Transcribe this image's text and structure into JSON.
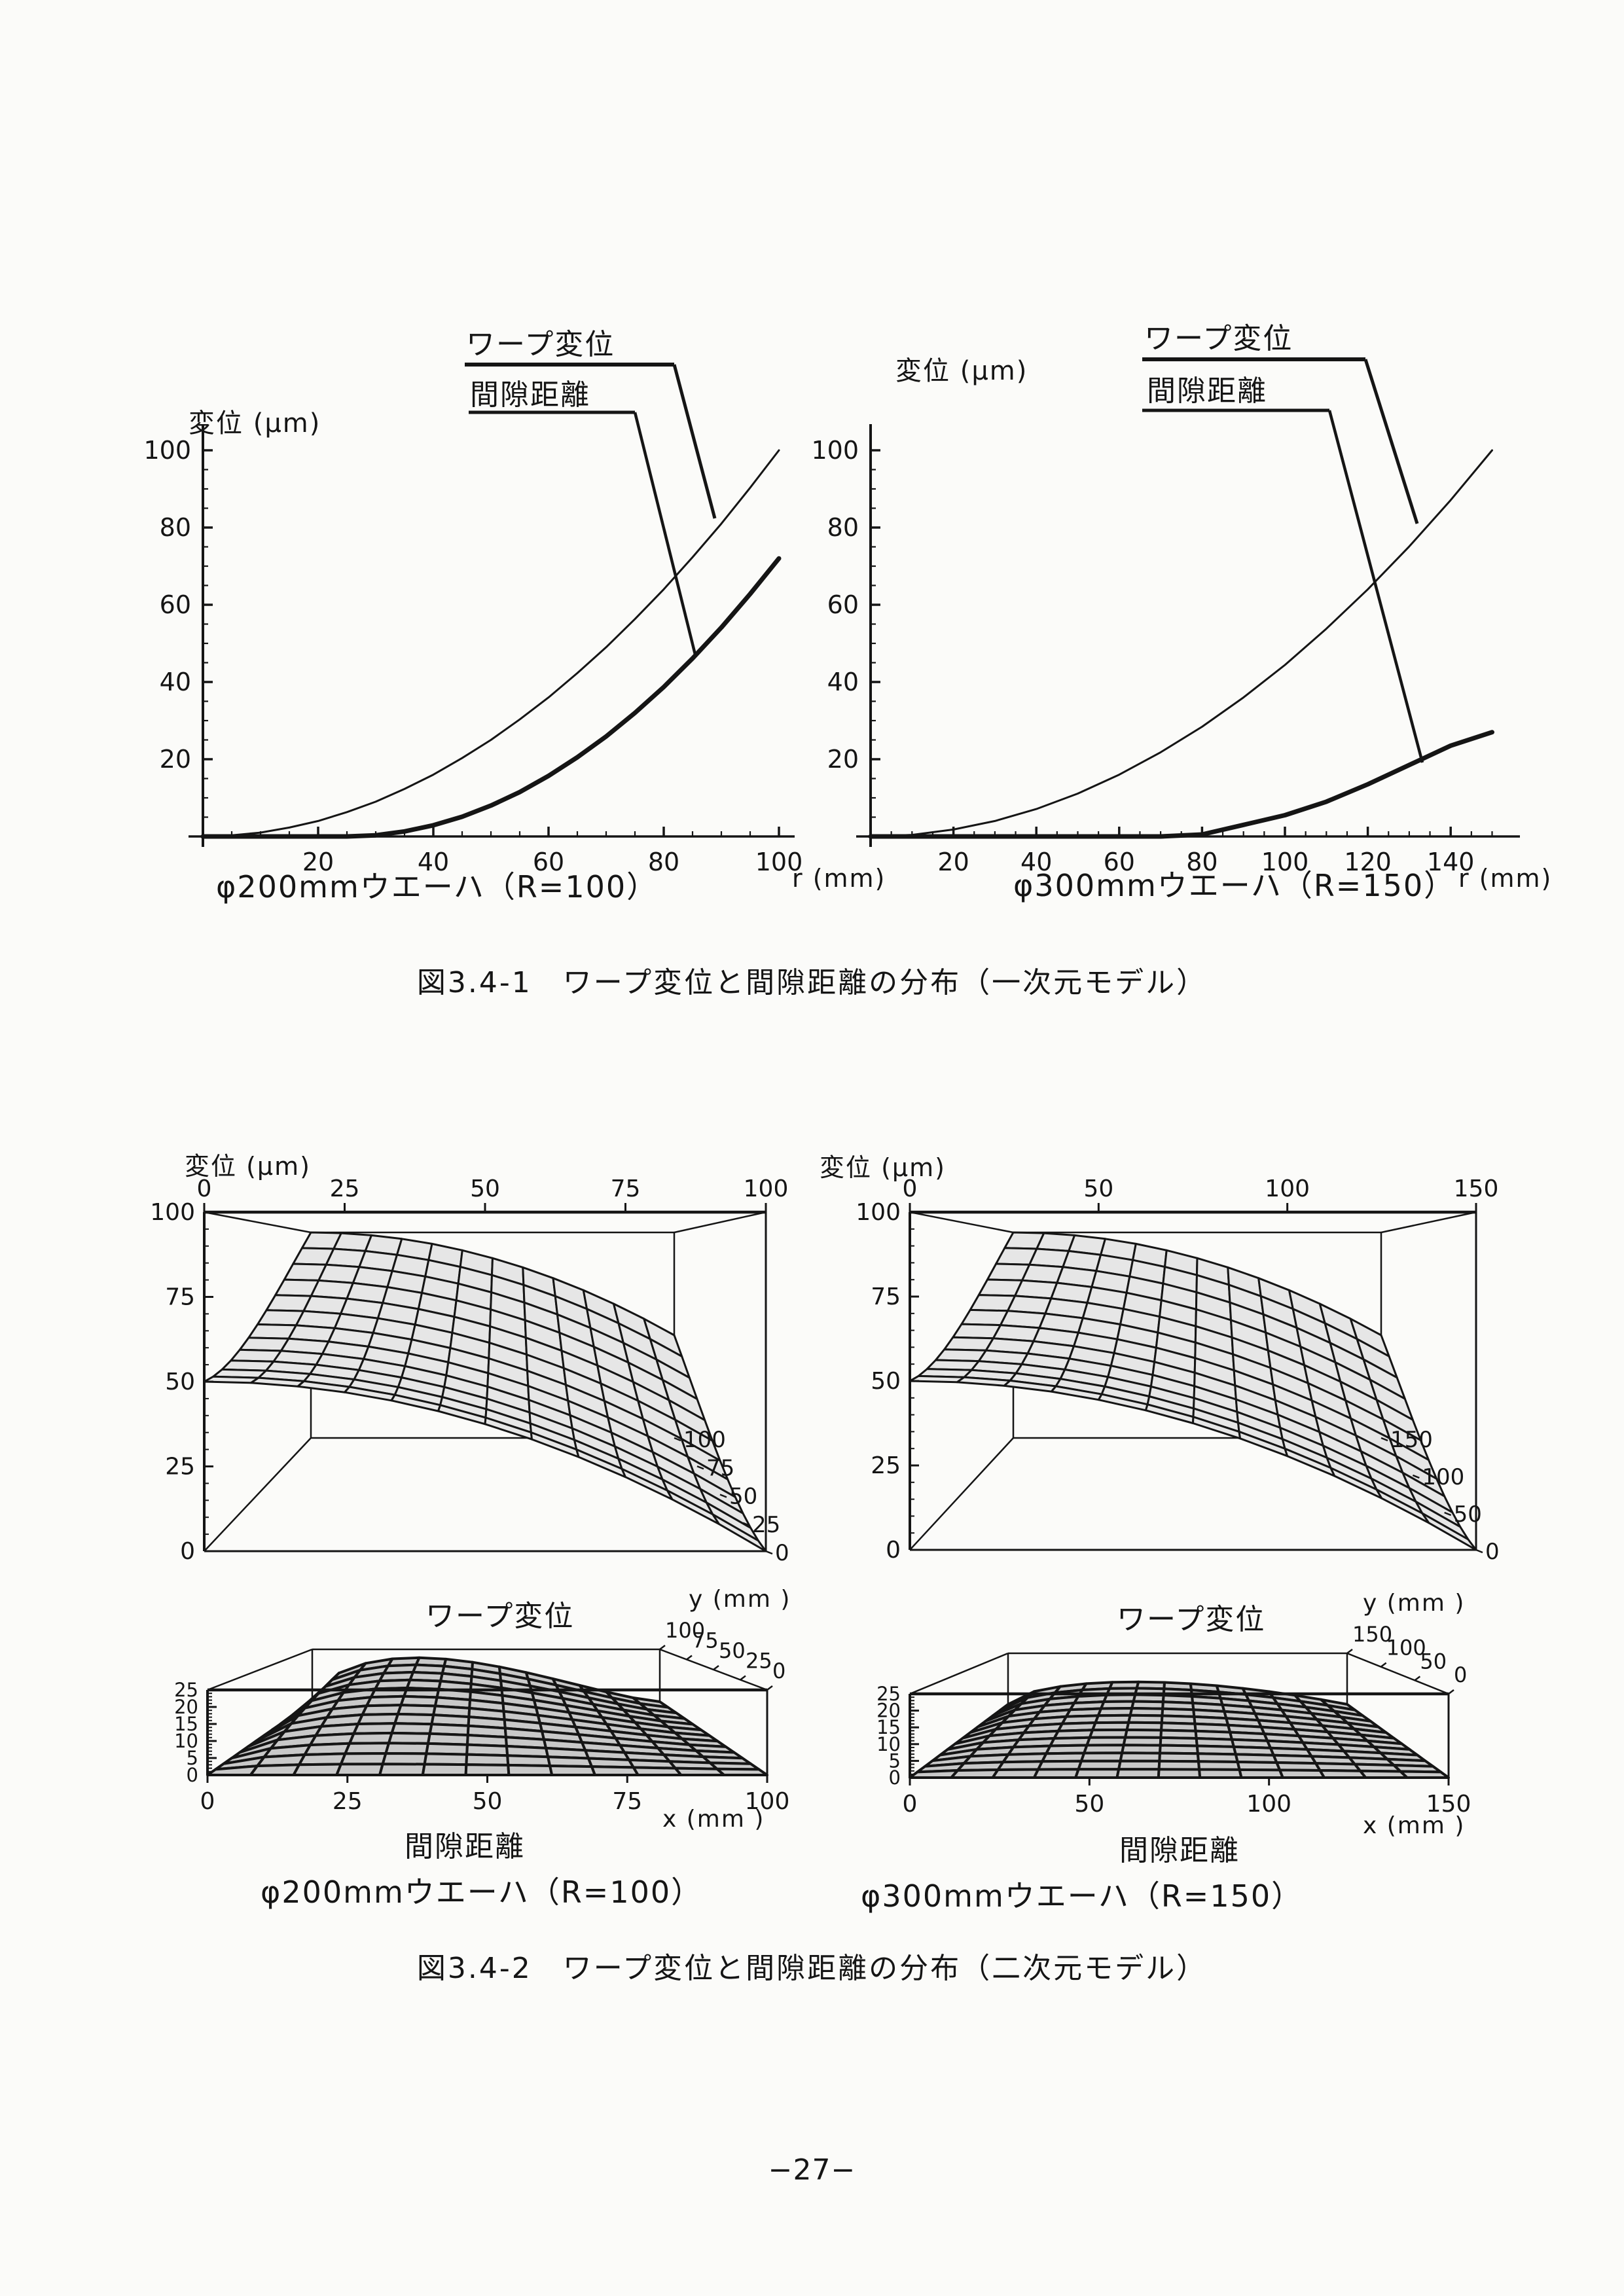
{
  "page": {
    "number": "−27−"
  },
  "figure1": {
    "caption": "図3.4-1　ワープ変位と間隙距離の分布（一次元モデル）"
  },
  "figure2": {
    "caption": "図3.4-2　ワープ変位と間隙距離の分布（二次元モデル）",
    "left_label": "φ200mmウエーハ（R=100）",
    "right_label": "φ300mmウエーハ（R=150）"
  },
  "chart_data": [
    {
      "type": "line",
      "title": "φ200mmウエーハ（R=100）",
      "xlabel": "r (mm)",
      "ylabel": "変位 (μm)",
      "xlim": [
        0,
        103
      ],
      "ylim": [
        0,
        104
      ],
      "x_ticks": [
        20,
        40,
        60,
        80,
        100
      ],
      "y_ticks": [
        20,
        40,
        60,
        80,
        100
      ],
      "minor_tick_step": 5,
      "grid": "off",
      "legend_position": "callout-top-right",
      "series": [
        {
          "name": "ワープ変位",
          "line": "thin",
          "r": [
            0,
            5,
            10,
            15,
            20,
            25,
            30,
            35,
            40,
            45,
            50,
            55,
            60,
            65,
            70,
            75,
            80,
            85,
            90,
            95,
            100
          ],
          "values": [
            0,
            0.3,
            1,
            2.3,
            4,
            6.3,
            9,
            12.3,
            16,
            20.3,
            25,
            30.3,
            36,
            42.3,
            49,
            56.3,
            64,
            72.3,
            81,
            90.3,
            100
          ]
        },
        {
          "name": "間隙距離",
          "line": "thick",
          "r": [
            0,
            5,
            10,
            15,
            20,
            25,
            30,
            35,
            40,
            45,
            50,
            55,
            60,
            65,
            70,
            75,
            80,
            85,
            90,
            95,
            100
          ],
          "values": [
            0,
            0,
            0,
            0,
            0,
            0,
            0.3,
            1.3,
            2.9,
            5.1,
            8,
            11.5,
            15.7,
            20.5,
            25.9,
            32,
            38.7,
            46.1,
            54.1,
            62.8,
            72
          ]
        }
      ]
    },
    {
      "type": "line",
      "title": "φ300mmウエーハ（R=150）",
      "xlabel": "r (mm)",
      "ylabel": "変位 (μm)",
      "xlim": [
        0,
        155
      ],
      "ylim": [
        0,
        104
      ],
      "x_ticks": [
        20,
        40,
        60,
        80,
        100,
        120,
        140
      ],
      "y_ticks": [
        20,
        40,
        60,
        80,
        100
      ],
      "minor_tick_step": 5,
      "grid": "off",
      "legend_position": "callout-top-right",
      "series": [
        {
          "name": "ワープ変位",
          "line": "thin",
          "r": [
            0,
            10,
            20,
            30,
            40,
            50,
            60,
            70,
            80,
            90,
            100,
            110,
            120,
            130,
            140,
            150
          ],
          "values": [
            0,
            0.4,
            1.8,
            4,
            7.1,
            11.1,
            16,
            21.8,
            28.4,
            36,
            44.4,
            53.8,
            64,
            75.1,
            87.1,
            100
          ]
        },
        {
          "name": "間隙距離",
          "line": "thick",
          "r": [
            0,
            10,
            20,
            30,
            40,
            50,
            60,
            70,
            80,
            90,
            100,
            110,
            120,
            130,
            140,
            150
          ],
          "values": [
            0,
            0,
            0,
            0,
            0,
            0,
            0,
            0,
            0.5,
            3,
            5.5,
            9,
            13.5,
            18.5,
            23.5,
            27
          ]
        }
      ]
    },
    {
      "type": "surface",
      "caption": "ワープ変位",
      "zlabel": "変位 (μm)",
      "xlim": [
        0,
        100
      ],
      "ylim": [
        0,
        100
      ],
      "zlim": [
        0,
        100
      ],
      "x_ticks": [
        0,
        25,
        50,
        75,
        100
      ],
      "y_ticks": [
        0,
        25,
        50,
        75,
        100
      ],
      "z_ticks": [
        0,
        25,
        50,
        75,
        100
      ],
      "z_formula": "z = 50·(1 − (x/100)² + (y/100)²)",
      "z_samples_grid": "rows y=0,25,50,75,100 × cols x=0,25,50,75,100",
      "z_samples": [
        [
          50,
          46.9,
          37.5,
          21.9,
          0
        ],
        [
          53.1,
          50,
          40.6,
          25,
          3.1
        ],
        [
          62.5,
          59.4,
          50,
          34.4,
          12.5
        ],
        [
          78.1,
          75,
          65.6,
          50,
          28.1
        ],
        [
          100,
          96.9,
          87.5,
          71.9,
          50
        ]
      ]
    },
    {
      "type": "surface",
      "caption": "ワープ変位",
      "zlabel": "変位 (μm)",
      "xlim": [
        0,
        150
      ],
      "ylim": [
        0,
        150
      ],
      "zlim": [
        0,
        100
      ],
      "x_ticks": [
        0,
        50,
        100,
        150
      ],
      "y_ticks": [
        0,
        50,
        100,
        150
      ],
      "z_ticks": [
        0,
        25,
        50,
        75,
        100
      ],
      "z_formula": "z = 50·(1 − (x/150)² + (y/150)²)",
      "z_samples_grid": "rows y=0,37.5,75,112.5,150 × cols x=0,37.5,75,112.5,150",
      "z_samples": [
        [
          50,
          46.9,
          37.5,
          21.9,
          0
        ],
        [
          53.1,
          50,
          40.6,
          25,
          3.1
        ],
        [
          62.5,
          59.4,
          50,
          34.4,
          12.5
        ],
        [
          78.1,
          75,
          65.6,
          50,
          28.1
        ],
        [
          100,
          96.9,
          87.5,
          71.9,
          50
        ]
      ]
    },
    {
      "type": "surface",
      "caption": "間隙距離",
      "xlabel": "x (mm )",
      "ylabel": "y (mm )",
      "xlim": [
        0,
        100
      ],
      "ylim": [
        0,
        100
      ],
      "zlim": [
        0,
        25
      ],
      "x_ticks": [
        0,
        25,
        50,
        75,
        100
      ],
      "y_ticks": [
        0,
        25,
        50,
        75,
        100
      ],
      "z_ticks": [
        0,
        5,
        10,
        15,
        20,
        25
      ],
      "z_peak": 21,
      "z_samples_grid": "rows y=0,25,50,75,100 × cols x=0,25,50,75,100",
      "z_samples": [
        [
          0,
          0,
          0,
          0,
          0
        ],
        [
          0,
          5.2,
          4.5,
          2.2,
          0
        ],
        [
          0,
          10.3,
          8.9,
          4.3,
          0
        ],
        [
          0,
          15.5,
          13.4,
          6.5,
          0
        ],
        [
          0,
          20.7,
          17.8,
          8.6,
          0
        ]
      ]
    },
    {
      "type": "surface",
      "caption": "間隙距離",
      "xlabel": "x (mm )",
      "ylabel": "y (mm )",
      "xlim": [
        0,
        150
      ],
      "ylim": [
        0,
        150
      ],
      "zlim": [
        0,
        25
      ],
      "x_ticks": [
        0,
        50,
        100,
        150
      ],
      "y_ticks": [
        0,
        50,
        100,
        150
      ],
      "z_ticks": [
        0,
        5,
        10,
        15,
        20,
        25
      ],
      "z_peak": 11,
      "z_samples_grid": "rows y=0,50,100,150 × cols x=0,50,100,150",
      "z_samples": [
        [
          0,
          0,
          0,
          0
        ],
        [
          0,
          3.7,
          2.8,
          0
        ],
        [
          0,
          7.3,
          5.5,
          0
        ],
        [
          0,
          11,
          8.3,
          0
        ]
      ]
    }
  ]
}
